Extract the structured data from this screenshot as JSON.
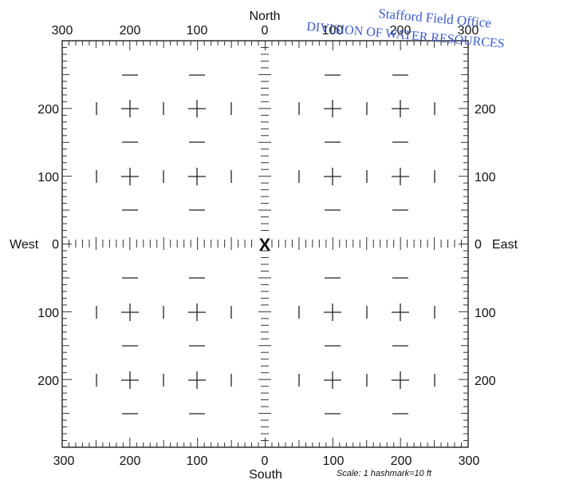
{
  "directions": {
    "north": "North",
    "south": "South",
    "west": "West",
    "east": "East"
  },
  "top_axis_labels": [
    "300",
    "200",
    "100",
    "0",
    "100",
    "200",
    "300"
  ],
  "bottom_axis_labels": [
    "300",
    "200",
    "100",
    "0",
    "100",
    "200",
    "300"
  ],
  "left_axis_labels": [
    "200",
    "100",
    "0",
    "100",
    "200"
  ],
  "right_axis_labels": [
    "200",
    "100",
    "0",
    "100",
    "200"
  ],
  "center_marker": "X",
  "stamp": {
    "line1": "Stafford Field Office",
    "line2": "DIVISION OF WATER RESOURCES",
    "color": "#3b5bdb"
  },
  "scale_note": "Scale:  1 hashmark=10 ft"
}
